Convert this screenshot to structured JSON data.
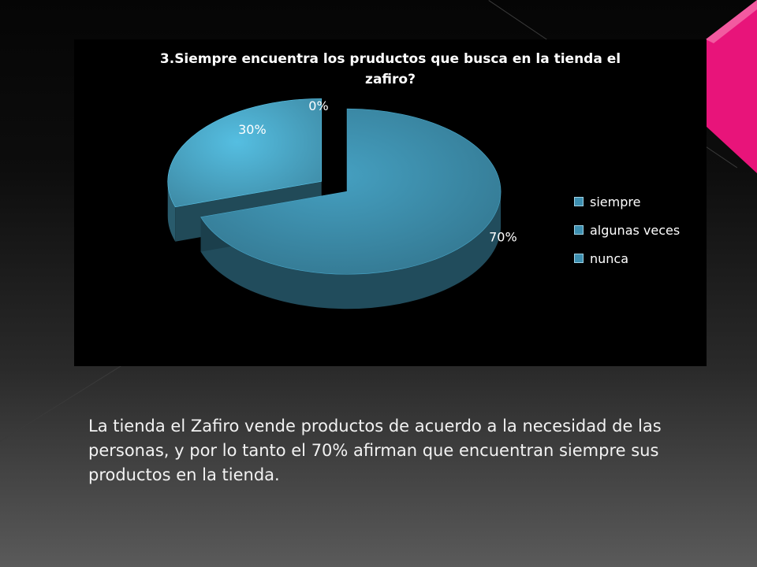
{
  "slide": {
    "body_text": "La tienda el Zafiro vende productos de acuerdo a la necesidad de las personas, y por lo tanto el 70% afirman que encuentran siempre sus productos en la tienda.",
    "accent_color": "#e8147a"
  },
  "chart_data": {
    "type": "pie",
    "style": "3d-exploded",
    "title_lines": [
      "3.Siempre encuentra los pruductos que busca en la tienda el",
      "zafiro?"
    ],
    "categories": [
      "siempre",
      "algunas veces",
      "nunca"
    ],
    "values": [
      70,
      30,
      0
    ],
    "data_labels": [
      "70%",
      "30%",
      "0%"
    ],
    "colors": [
      "#3c8ba8",
      "#4aa5c4",
      "#4aa5c4"
    ],
    "legend": {
      "position": "right",
      "entries": [
        "siempre",
        "algunas veces",
        "nunca"
      ]
    }
  }
}
